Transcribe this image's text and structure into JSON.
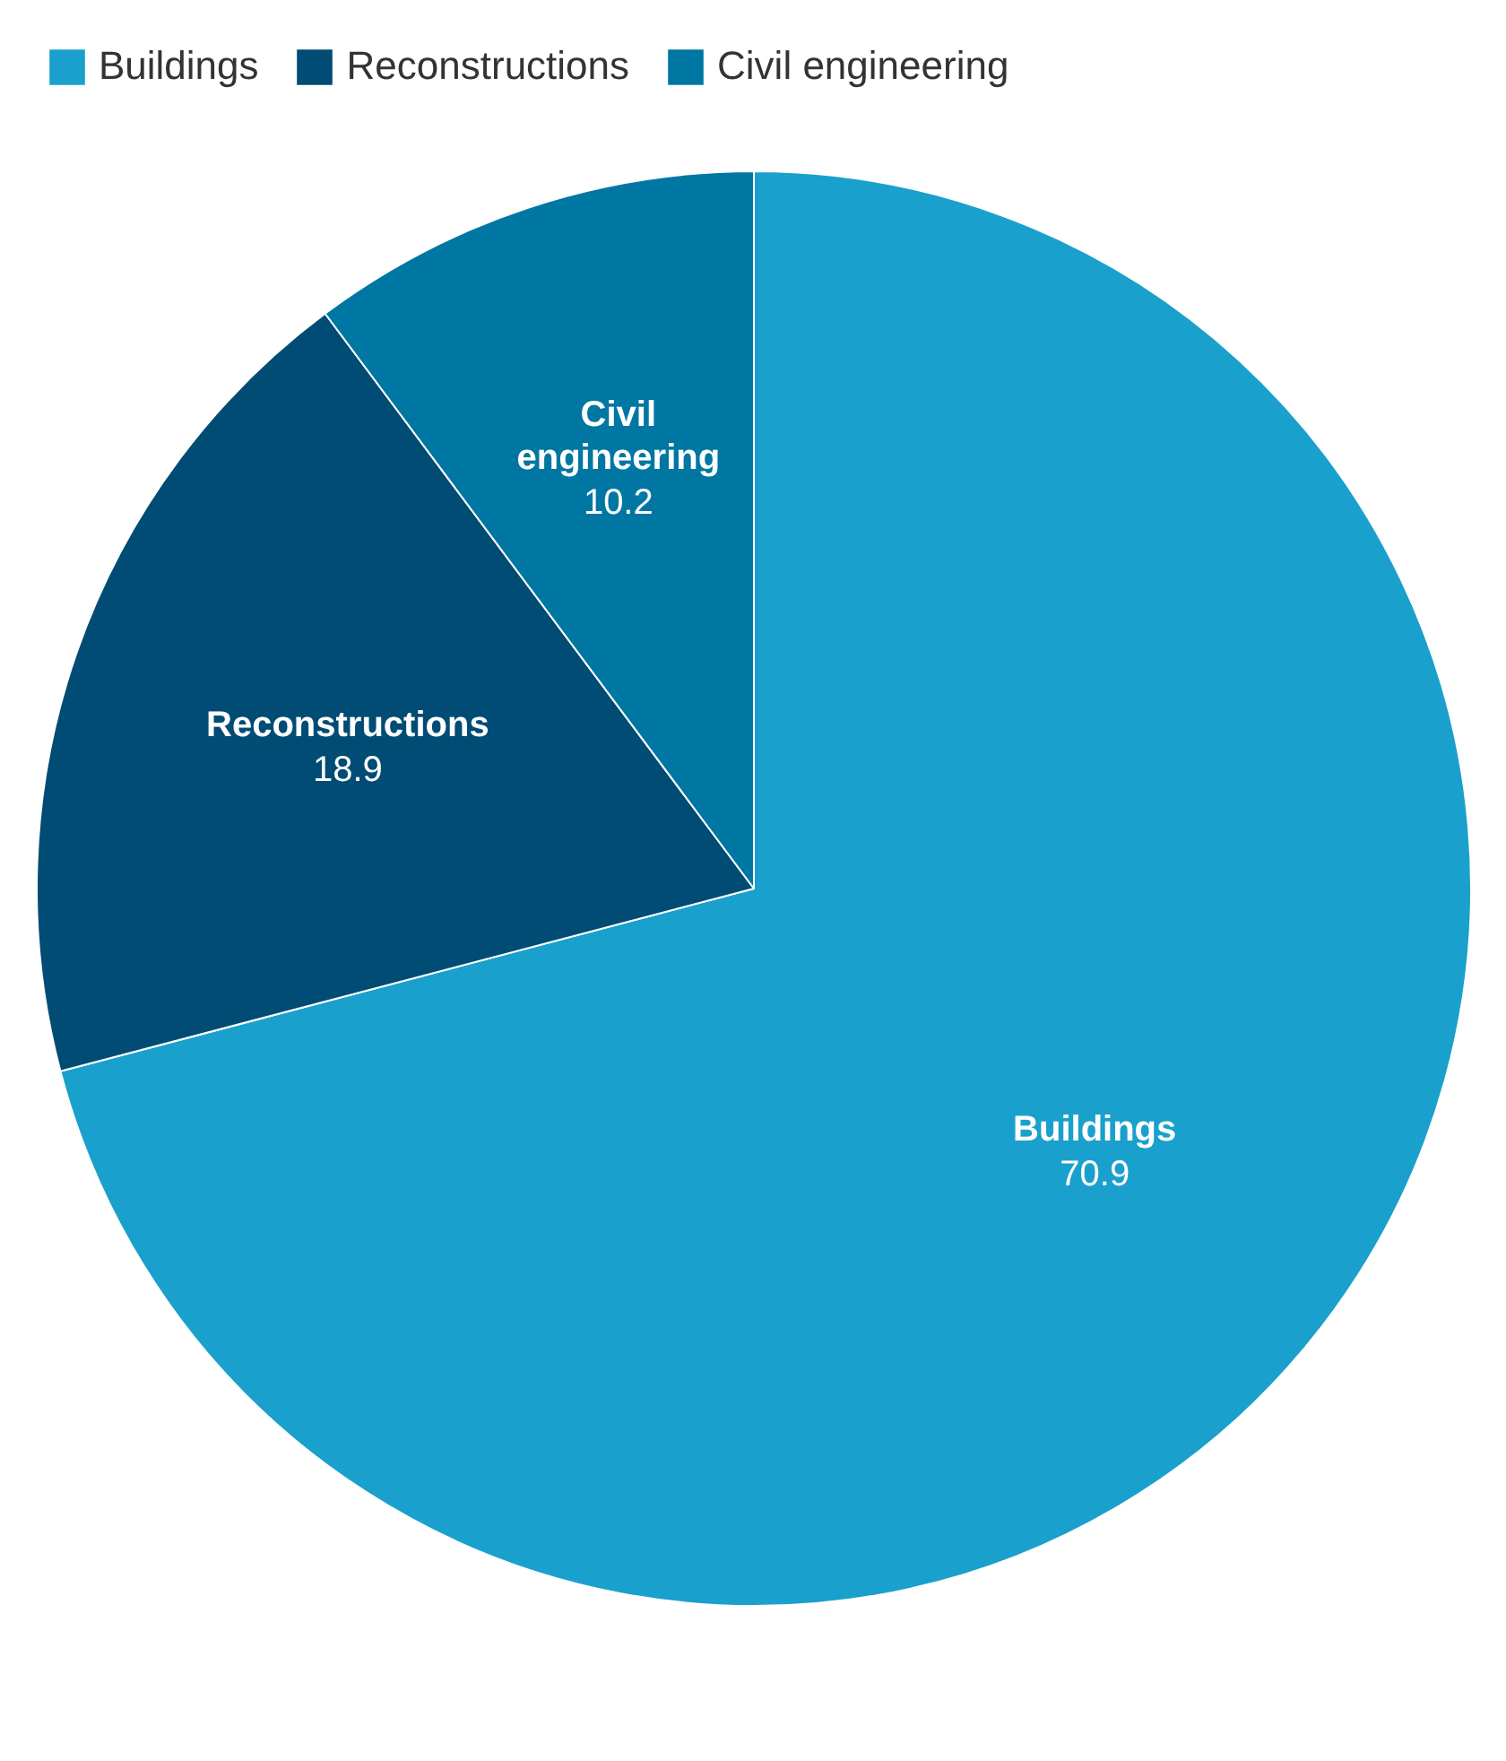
{
  "chart_data": {
    "type": "pie",
    "categories": [
      "Buildings",
      "Reconstructions",
      "Civil engineering"
    ],
    "values": [
      70.9,
      18.9,
      10.2
    ],
    "colors": [
      "#1aa0cc",
      "#004c74",
      "#0077a2"
    ],
    "data_labels": true,
    "legend": "top left"
  }
}
